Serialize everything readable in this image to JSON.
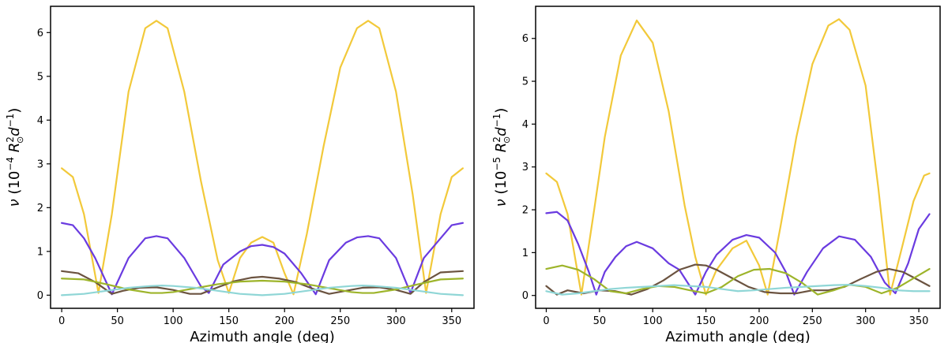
{
  "chart_data": [
    {
      "type": "line",
      "title": "",
      "xlabel": "Azimuth angle (deg)",
      "ylabel_parts": {
        "symbol": "ν",
        "open": "(10",
        "exp": "−4",
        "unit": "R",
        "unit_sup": "2",
        "unit_sub": "⊙",
        "d": "d",
        "d_exp": "−1",
        "close": ")"
      },
      "xlim": [
        -10,
        370
      ],
      "ylim": [
        -0.3,
        6.6
      ],
      "xticks": [
        0,
        50,
        100,
        150,
        200,
        250,
        300,
        350
      ],
      "yticks": [
        0,
        1,
        2,
        3,
        4,
        5,
        6
      ],
      "series": [
        {
          "name": "yellow",
          "color": "#f2c93a",
          "x": [
            0,
            10,
            20,
            33,
            45,
            60,
            75,
            85,
            95,
            110,
            125,
            140,
            150,
            160,
            170,
            180,
            190,
            200,
            208,
            220,
            235,
            250,
            265,
            275,
            285,
            300,
            315,
            327,
            340,
            350,
            360
          ],
          "y": [
            2.9,
            2.7,
            1.85,
            0.05,
            1.85,
            4.65,
            6.1,
            6.27,
            6.1,
            4.65,
            2.6,
            0.8,
            0.05,
            0.85,
            1.2,
            1.33,
            1.2,
            0.5,
            0.02,
            1.4,
            3.4,
            5.2,
            6.1,
            6.27,
            6.1,
            4.65,
            2.3,
            0.05,
            1.85,
            2.7,
            2.9
          ]
        },
        {
          "name": "purple",
          "color": "#6a3be0",
          "x": [
            0,
            10,
            20,
            30,
            45,
            60,
            75,
            85,
            95,
            110,
            125,
            132,
            145,
            160,
            170,
            180,
            190,
            200,
            215,
            228,
            240,
            255,
            265,
            275,
            285,
            300,
            313,
            325,
            340,
            350,
            360
          ],
          "y": [
            1.65,
            1.6,
            1.3,
            0.85,
            0.02,
            0.85,
            1.3,
            1.35,
            1.3,
            0.85,
            0.2,
            0.05,
            0.7,
            1.0,
            1.12,
            1.15,
            1.1,
            0.95,
            0.5,
            0.02,
            0.8,
            1.2,
            1.32,
            1.35,
            1.3,
            0.85,
            0.05,
            0.85,
            1.3,
            1.6,
            1.65
          ]
        },
        {
          "name": "brown",
          "color": "#6b5340",
          "x": [
            0,
            15,
            30,
            45,
            55,
            70,
            85,
            100,
            115,
            125,
            140,
            155,
            170,
            180,
            195,
            210,
            225,
            240,
            255,
            270,
            285,
            300,
            313,
            325,
            340,
            360
          ],
          "y": [
            0.55,
            0.5,
            0.3,
            0.03,
            0.1,
            0.17,
            0.18,
            0.12,
            0.03,
            0.03,
            0.18,
            0.32,
            0.4,
            0.42,
            0.38,
            0.3,
            0.15,
            0.03,
            0.1,
            0.17,
            0.18,
            0.12,
            0.03,
            0.3,
            0.52,
            0.55
          ]
        },
        {
          "name": "olive",
          "color": "#9db42a",
          "x": [
            0,
            20,
            40,
            60,
            80,
            90,
            100,
            120,
            140,
            160,
            180,
            200,
            220,
            240,
            260,
            270,
            280,
            300,
            320,
            340,
            360
          ],
          "y": [
            0.38,
            0.36,
            0.25,
            0.13,
            0.05,
            0.05,
            0.07,
            0.16,
            0.25,
            0.31,
            0.33,
            0.31,
            0.25,
            0.16,
            0.07,
            0.05,
            0.05,
            0.13,
            0.25,
            0.36,
            0.38
          ]
        },
        {
          "name": "cyan",
          "color": "#8fd6d6",
          "x": [
            0,
            20,
            40,
            60,
            80,
            90,
            100,
            120,
            140,
            160,
            180,
            200,
            220,
            240,
            260,
            270,
            280,
            300,
            320,
            340,
            360
          ],
          "y": [
            0.0,
            0.03,
            0.1,
            0.17,
            0.21,
            0.22,
            0.21,
            0.17,
            0.1,
            0.03,
            0.0,
            0.03,
            0.1,
            0.17,
            0.21,
            0.22,
            0.21,
            0.17,
            0.1,
            0.03,
            0.0
          ]
        }
      ]
    },
    {
      "type": "line",
      "title": "",
      "xlabel": "Azimuth angle (deg)",
      "ylabel_parts": {
        "symbol": "ν",
        "open": "(10",
        "exp": "−5",
        "unit": "R",
        "unit_sup": "2",
        "unit_sub": "⊙",
        "d": "d",
        "d_exp": "−1",
        "close": ")"
      },
      "xlim": [
        -10,
        370
      ],
      "ylim": [
        -0.3,
        6.75
      ],
      "xticks": [
        0,
        50,
        100,
        150,
        200,
        250,
        300,
        350
      ],
      "yticks": [
        0,
        1,
        2,
        3,
        4,
        5,
        6
      ],
      "series": [
        {
          "name": "yellow",
          "color": "#f2c93a",
          "x": [
            0,
            10,
            20,
            33,
            45,
            55,
            70,
            85,
            100,
            115,
            130,
            140,
            150,
            160,
            175,
            188,
            200,
            208,
            220,
            235,
            250,
            265,
            275,
            285,
            300,
            312,
            323,
            335,
            345,
            355,
            360
          ],
          "y": [
            2.85,
            2.65,
            1.9,
            0.02,
            2.0,
            3.7,
            5.6,
            6.42,
            5.9,
            4.3,
            2.1,
            0.9,
            0.02,
            0.6,
            1.1,
            1.28,
            0.7,
            0.02,
            1.6,
            3.7,
            5.4,
            6.3,
            6.45,
            6.2,
            4.9,
            2.5,
            0.02,
            1.2,
            2.2,
            2.8,
            2.85
          ]
        },
        {
          "name": "purple",
          "color": "#6a3be0",
          "x": [
            0,
            10,
            20,
            30,
            40,
            47,
            55,
            65,
            75,
            85,
            100,
            115,
            125,
            140,
            150,
            160,
            175,
            188,
            200,
            215,
            225,
            233,
            245,
            260,
            275,
            290,
            305,
            318,
            328,
            340,
            350,
            360
          ],
          "y": [
            1.92,
            1.95,
            1.75,
            1.2,
            0.55,
            0.02,
            0.55,
            0.9,
            1.15,
            1.25,
            1.1,
            0.75,
            0.6,
            0.02,
            0.55,
            0.95,
            1.3,
            1.41,
            1.35,
            1.0,
            0.55,
            0.02,
            0.55,
            1.1,
            1.38,
            1.3,
            0.9,
            0.3,
            0.05,
            0.75,
            1.55,
            1.9
          ]
        },
        {
          "name": "brown",
          "color": "#6b5340",
          "x": [
            0,
            10,
            20,
            35,
            50,
            65,
            80,
            95,
            110,
            125,
            140,
            150,
            160,
            175,
            190,
            205,
            220,
            235,
            250,
            265,
            280,
            295,
            310,
            322,
            335,
            345,
            360
          ],
          "y": [
            0.22,
            0.02,
            0.12,
            0.05,
            0.12,
            0.1,
            0.02,
            0.15,
            0.35,
            0.6,
            0.72,
            0.7,
            0.6,
            0.4,
            0.2,
            0.08,
            0.05,
            0.05,
            0.12,
            0.12,
            0.2,
            0.38,
            0.55,
            0.62,
            0.55,
            0.42,
            0.22
          ]
        },
        {
          "name": "olive",
          "color": "#9db42a",
          "x": [
            0,
            15,
            30,
            45,
            60,
            75,
            90,
            105,
            120,
            135,
            150,
            165,
            180,
            195,
            210,
            225,
            240,
            255,
            270,
            285,
            300,
            315,
            330,
            345,
            360
          ],
          "y": [
            0.62,
            0.7,
            0.6,
            0.38,
            0.1,
            0.05,
            0.15,
            0.22,
            0.2,
            0.12,
            0.05,
            0.2,
            0.45,
            0.6,
            0.62,
            0.52,
            0.3,
            0.02,
            0.12,
            0.25,
            0.2,
            0.05,
            0.18,
            0.4,
            0.62
          ]
        },
        {
          "name": "cyan",
          "color": "#8fd6d6",
          "x": [
            0,
            15,
            30,
            45,
            60,
            75,
            90,
            105,
            120,
            135,
            150,
            165,
            180,
            195,
            210,
            225,
            240,
            255,
            270,
            285,
            300,
            315,
            330,
            345,
            360
          ],
          "y": [
            0.1,
            0.02,
            0.05,
            0.1,
            0.15,
            0.18,
            0.2,
            0.22,
            0.24,
            0.22,
            0.2,
            0.15,
            0.1,
            0.12,
            0.15,
            0.18,
            0.2,
            0.22,
            0.24,
            0.25,
            0.22,
            0.18,
            0.12,
            0.1,
            0.1
          ]
        }
      ]
    }
  ]
}
